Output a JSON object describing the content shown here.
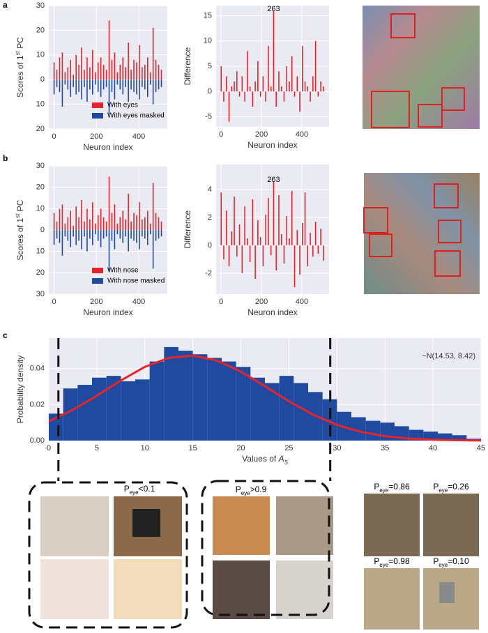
{
  "panel_labels": [
    "a",
    "b",
    "c"
  ],
  "chart_data": [
    {
      "type": "bar",
      "x": [
        0,
        13,
        26,
        39,
        52,
        65,
        78,
        91,
        104,
        117,
        130,
        143,
        156,
        169,
        182,
        195,
        208,
        221,
        234,
        247,
        260,
        273,
        286,
        299,
        312,
        325,
        338,
        351,
        364,
        377,
        390,
        403,
        416,
        429,
        442,
        455,
        468,
        481,
        494,
        507
      ],
      "series": [
        {
          "name": "With eyes",
          "color": "#e8242b",
          "values": [
            7,
            4,
            9,
            11,
            3,
            5,
            8,
            2,
            10,
            6,
            13,
            4,
            9,
            5,
            12,
            3,
            7,
            9,
            6,
            4,
            24,
            8,
            11,
            3,
            6,
            9,
            5,
            15,
            4,
            8,
            7,
            14,
            5,
            6,
            9,
            3,
            21,
            8,
            6,
            4
          ]
        },
        {
          "name": "With eyes masked",
          "color": "#1f4aa0",
          "values": [
            -6,
            -3,
            -5,
            -11,
            -2,
            -4,
            -7,
            -3,
            -6,
            -5,
            -8,
            -3,
            -9,
            -4,
            -6,
            -2,
            -5,
            -7,
            -4,
            -3,
            -14,
            -5,
            -8,
            -2,
            -4,
            -6,
            -3,
            -9,
            -4,
            -5,
            -6,
            -8,
            -3,
            -4,
            -7,
            -2,
            -10,
            -5,
            -4,
            -3
          ]
        }
      ],
      "ylabel": [
        "Scores of 1",
        "st",
        " PC"
      ],
      "xlabel": "Neuron index",
      "xlim": [
        -25,
        535
      ],
      "xticks": [
        0,
        200,
        400
      ],
      "ylim": [
        -20,
        30
      ],
      "yticks": [
        {
          "value": -20,
          "label": "20"
        },
        {
          "value": -10,
          "label": "10"
        },
        0,
        10,
        20,
        30
      ],
      "grid": true,
      "legend": "lower left"
    },
    {
      "type": "bar",
      "x": [
        0,
        13,
        26,
        39,
        52,
        65,
        78,
        91,
        104,
        117,
        130,
        143,
        156,
        169,
        182,
        195,
        208,
        221,
        234,
        247,
        260,
        273,
        286,
        299,
        312,
        325,
        338,
        351,
        364,
        377,
        390,
        403,
        416,
        429,
        442,
        455,
        468,
        481,
        494,
        507
      ],
      "series": [
        {
          "color": "#e8242b",
          "values": [
            5,
            -2,
            3,
            -6,
            1,
            2,
            4,
            -1,
            3,
            -2,
            8,
            1,
            -3,
            2,
            6,
            -1,
            3,
            -2,
            9,
            1,
            16,
            -3,
            4,
            1,
            -2,
            5,
            2,
            7,
            -1,
            3,
            -4,
            9,
            2,
            1,
            -2,
            3,
            10,
            -1,
            2,
            1
          ]
        }
      ],
      "annotation": "263",
      "ylabel": [
        "Difference"
      ],
      "xlabel": "Neuron index",
      "xlim": [
        -25,
        535
      ],
      "xticks": [
        0,
        200,
        400
      ],
      "ylim": [
        -7,
        17
      ],
      "yticks": [
        -5,
        0,
        5,
        10,
        15
      ],
      "grid": true
    },
    {
      "type": "bar",
      "x": [
        0,
        13,
        26,
        39,
        52,
        65,
        78,
        91,
        104,
        117,
        130,
        143,
        156,
        169,
        182,
        195,
        208,
        221,
        234,
        247,
        260,
        273,
        286,
        299,
        312,
        325,
        338,
        351,
        364,
        377,
        390,
        403,
        416,
        429,
        442,
        455,
        468,
        481,
        494,
        507
      ],
      "series": [
        {
          "name": "With nose",
          "color": "#e8242b",
          "values": [
            8,
            4,
            10,
            12,
            3,
            6,
            9,
            2,
            11,
            6,
            14,
            4,
            10,
            5,
            13,
            3,
            7,
            10,
            6,
            4,
            25,
            8,
            12,
            3,
            6,
            9,
            5,
            17,
            4,
            8,
            7,
            13,
            5,
            6,
            9,
            3,
            22,
            8,
            6,
            4
          ]
        },
        {
          "name": "With nose masked",
          "color": "#1f4aa0",
          "values": [
            -7,
            -4,
            -6,
            -12,
            -3,
            -5,
            -8,
            -3,
            -7,
            -5,
            -9,
            -3,
            -10,
            -4,
            -7,
            -2,
            -5,
            -8,
            -4,
            -3,
            -19,
            -5,
            -9,
            -2,
            -4,
            -6,
            -3,
            -10,
            -4,
            -5,
            -6,
            -9,
            -3,
            -4,
            -7,
            -2,
            -18,
            -5,
            -4,
            -3
          ]
        }
      ],
      "ylabel": [
        "Scores of 1",
        "st",
        " PC"
      ],
      "xlabel": "Neuron index",
      "xlim": [
        -25,
        535
      ],
      "xticks": [
        0,
        200,
        400
      ],
      "ylim": [
        -30,
        30
      ],
      "yticks": [
        {
          "value": -30,
          "label": "30"
        },
        {
          "value": -20,
          "label": "20"
        },
        {
          "value": -10,
          "label": "10"
        },
        0,
        10,
        20,
        30
      ],
      "grid": true,
      "legend": "lower left"
    },
    {
      "type": "bar",
      "x": [
        0,
        13,
        26,
        39,
        52,
        65,
        78,
        91,
        104,
        117,
        130,
        143,
        156,
        169,
        182,
        195,
        208,
        221,
        234,
        247,
        260,
        273,
        286,
        299,
        312,
        325,
        338,
        351,
        364,
        377,
        390,
        403,
        416,
        429,
        442,
        455,
        468,
        481,
        494,
        507
      ],
      "series": [
        {
          "color": "#e8242b",
          "values": [
            3.8,
            -1,
            2.5,
            -1.5,
            1,
            3.5,
            -0.8,
            1.5,
            -2,
            2.8,
            0.5,
            -1.2,
            3.3,
            -2.4,
            1.8,
            0.6,
            -1.5,
            2.2,
            3.4,
            -0.7,
            4.6,
            -1.8,
            3.6,
            0.8,
            -1.3,
            2.1,
            0.5,
            3.9,
            -3,
            1.1,
            -2.1,
            1.6,
            3.8,
            -1.5,
            0.9,
            -0.8,
            1.7,
            -0.6,
            1.2,
            -1.1
          ]
        }
      ],
      "annotation": "263",
      "ylabel": [
        "Difference"
      ],
      "xlabel": "Neuron index",
      "xlim": [
        -25,
        535
      ],
      "xticks": [
        0,
        200,
        400
      ],
      "ylim": [
        -3.5,
        5.8
      ],
      "yticks": [
        -2,
        0,
        2,
        4
      ],
      "grid": true
    },
    {
      "type": "histogram",
      "bins": [
        0,
        1.5,
        3,
        4.5,
        6,
        7.5,
        9,
        10.5,
        12,
        13.5,
        15,
        16.5,
        18,
        19.5,
        21,
        22.5,
        24,
        25.5,
        27,
        28.5,
        30,
        31.5,
        33,
        34.5,
        36,
        37.5,
        39,
        40.5,
        42,
        43.5,
        45
      ],
      "values": [
        0.015,
        0.029,
        0.031,
        0.035,
        0.036,
        0.033,
        0.034,
        0.044,
        0.052,
        0.05,
        0.048,
        0.046,
        0.044,
        0.041,
        0.035,
        0.032,
        0.036,
        0.032,
        0.027,
        0.023,
        0.016,
        0.013,
        0.011,
        0.01,
        0.008,
        0.006,
        0.005,
        0.004,
        0.003,
        0.001
      ],
      "color": "#1f4aa0",
      "curve": {
        "color": "#e8242b",
        "x": [
          0,
          2.5,
          5,
          7.5,
          10,
          12.5,
          15,
          17.5,
          20,
          22.5,
          25,
          27.5,
          30,
          32.5,
          35,
          37.5,
          40,
          42.5,
          45
        ],
        "values": [
          0.01069,
          0.01707,
          0.02497,
          0.03344,
          0.041,
          0.04602,
          0.0473,
          0.04452,
          0.03837,
          0.03027,
          0.02187,
          0.01447,
          0.00876,
          0.00486,
          0.00247,
          0.00115,
          0.00049,
          0.00019,
          7e-05
        ]
      },
      "vlines": [
        1,
        29.3
      ],
      "annotation": "~N(14.53, 8.42)",
      "ylabel": [
        "Probability density"
      ],
      "xlabel": "Values of ",
      "xlabel_italic": "A",
      "xlabel_sub": "S",
      "xlim": [
        0,
        45
      ],
      "xticks": [
        0,
        5,
        10,
        15,
        20,
        25,
        30,
        35,
        40,
        45
      ],
      "ylim": [
        0,
        0.057
      ],
      "yticks": [
        {
          "value": 0,
          "label": "0.00"
        },
        {
          "value": 0.02,
          "label": "0.02"
        },
        {
          "value": 0.04,
          "label": "0.04"
        }
      ],
      "grid": true
    }
  ],
  "captions": [
    {
      "p": "P",
      "sub": "eye",
      "rest": "<0.1"
    },
    {
      "p": "P",
      "sub": "eye",
      "rest": ">0.9"
    },
    {
      "p": "P",
      "sub": "eye",
      "rest": "=0.86"
    },
    {
      "p": "P",
      "sub": "eye",
      "rest": "=0.26"
    },
    {
      "p": "P",
      "sub": "eye",
      "rest": "=0.98"
    },
    {
      "p": "P",
      "sub": "eye",
      "rest": "=0.10"
    }
  ]
}
